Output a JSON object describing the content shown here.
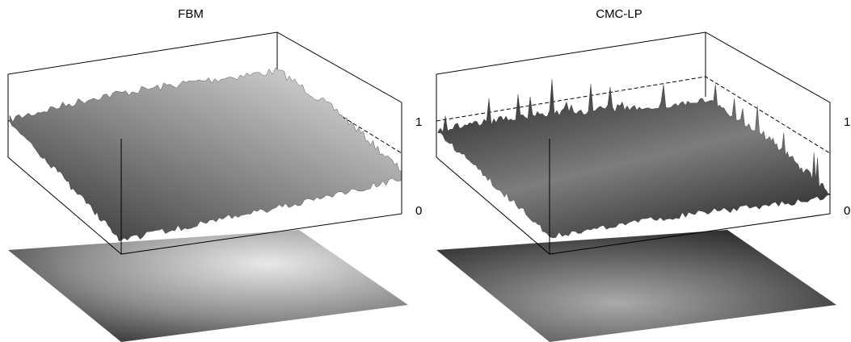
{
  "panels": [
    {
      "title": "FBM",
      "axis_labels": [
        "1",
        "0"
      ]
    },
    {
      "title": "CMC-LP",
      "axis_labels": [
        "1",
        "0"
      ]
    }
  ]
}
